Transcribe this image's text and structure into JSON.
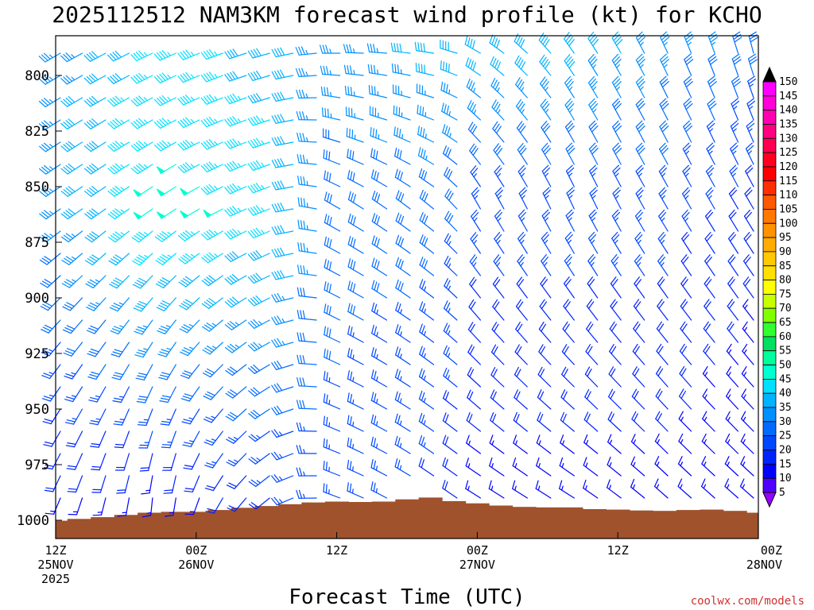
{
  "chart_data": {
    "type": "wind_profile",
    "title": "2025112512 NAM3KM forecast wind profile (kt) for KCHO",
    "xlabel": "Forecast Time (UTC)",
    "ylabel": "",
    "credit": "coolwx.com/models",
    "x_ticks": [
      {
        "hour": 0,
        "lines": [
          "12Z",
          "25NOV",
          "2025"
        ]
      },
      {
        "hour": 12,
        "lines": [
          "00Z",
          "26NOV"
        ]
      },
      {
        "hour": 24,
        "lines": [
          "12Z"
        ]
      },
      {
        "hour": 36,
        "lines": [
          "00Z",
          "27NOV"
        ]
      },
      {
        "hour": 48,
        "lines": [
          "12Z"
        ]
      },
      {
        "hour": 60,
        "lines": [
          "00Z",
          "28NOV"
        ]
      }
    ],
    "xlim_hours": [
      0,
      60
    ],
    "y_ticks": [
      "800",
      "825",
      "850",
      "875",
      "900",
      "925",
      "950",
      "975",
      "1000"
    ],
    "y_tick_values": [
      800,
      825,
      850,
      875,
      900,
      925,
      950,
      975,
      1000
    ],
    "ylim_hpa": [
      783,
      1008
    ],
    "pressure_levels_hpa": [
      790,
      800,
      810,
      820,
      830,
      840,
      850,
      860,
      870,
      880,
      890,
      900,
      910,
      920,
      930,
      940,
      950,
      960,
      970,
      980,
      990,
      1000
    ],
    "forecast_hours": [
      0,
      2,
      4,
      6,
      8,
      10,
      12,
      14,
      16,
      18,
      20,
      22,
      24,
      26,
      28,
      30,
      32,
      34,
      36,
      38,
      40,
      42,
      44,
      46,
      48,
      50,
      52,
      54,
      56,
      58,
      60
    ],
    "wind_keyframes": [
      {
        "hour": 0,
        "upper": {
          "dir": 240,
          "spd": 35
        },
        "mid": {
          "dir": 235,
          "spd": 35
        },
        "low": {
          "dir": 200,
          "spd": 15
        }
      },
      {
        "hour": 9,
        "upper": {
          "dir": 245,
          "spd": 45
        },
        "mid": {
          "dir": 235,
          "spd": 50
        },
        "low": {
          "dir": 180,
          "spd": 12
        }
      },
      {
        "hour": 19,
        "upper": {
          "dir": 255,
          "spd": 40
        },
        "mid": {
          "dir": 250,
          "spd": 45
        },
        "low": {
          "dir": 235,
          "spd": 20
        }
      },
      {
        "hour": 24,
        "upper": {
          "dir": 270,
          "spd": 35
        },
        "mid": {
          "dir": 300,
          "spd": 30
        },
        "low": {
          "dir": 290,
          "spd": 25
        }
      },
      {
        "hour": 33,
        "upper": {
          "dir": 280,
          "spd": 40
        },
        "mid": {
          "dir": 310,
          "spd": 30
        },
        "low": {
          "dir": 305,
          "spd": 20
        }
      },
      {
        "hour": 36,
        "upper": {
          "dir": 300,
          "spd": 40
        },
        "mid": {
          "dir": 330,
          "spd": 25
        },
        "low": {
          "dir": 300,
          "spd": 15
        }
      },
      {
        "hour": 44,
        "upper": {
          "dir": 325,
          "spd": 40
        },
        "mid": {
          "dir": 335,
          "spd": 25
        },
        "low": {
          "dir": 300,
          "spd": 15
        }
      },
      {
        "hour": 52,
        "upper": {
          "dir": 335,
          "spd": 35
        },
        "mid": {
          "dir": 330,
          "spd": 25
        },
        "low": {
          "dir": 310,
          "spd": 15
        }
      },
      {
        "hour": 60,
        "upper": {
          "dir": 345,
          "spd": 30
        },
        "mid": {
          "dir": 330,
          "spd": 20
        },
        "low": {
          "dir": 310,
          "spd": 12
        }
      }
    ],
    "terrain": {
      "color": "#a0522d",
      "hours": [
        0,
        2,
        4,
        6,
        8,
        10,
        12,
        14,
        16,
        18,
        20,
        22,
        24,
        26,
        28,
        30,
        32,
        34,
        36,
        38,
        40,
        42,
        44,
        46,
        48,
        50,
        52,
        54,
        56,
        58,
        60
      ],
      "surface_pressure_hpa": [
        1000.2,
        999.4,
        998.6,
        997.6,
        996.6,
        996.2,
        996.2,
        995.4,
        994.4,
        993.6,
        992.8,
        992.0,
        991.6,
        991.8,
        991.6,
        990.6,
        989.8,
        991.4,
        992.4,
        993.4,
        994.0,
        994.2,
        994.2,
        995.0,
        995.2,
        995.6,
        995.8,
        995.4,
        995.2,
        995.8,
        996.6
      ]
    },
    "colorbar": {
      "labels": [
        "150",
        "145",
        "140",
        "135",
        "130",
        "125",
        "120",
        "115",
        "110",
        "105",
        "100",
        "95",
        "90",
        "85",
        "80",
        "75",
        "70",
        "65",
        "60",
        "55",
        "50",
        "45",
        "40",
        "35",
        "30",
        "25",
        "20",
        "15",
        "10",
        "5"
      ],
      "values": [
        150,
        145,
        140,
        135,
        130,
        125,
        120,
        115,
        110,
        105,
        100,
        95,
        90,
        85,
        80,
        75,
        70,
        65,
        60,
        55,
        50,
        45,
        40,
        35,
        30,
        25,
        20,
        15,
        10,
        5
      ],
      "colors": [
        "#ff00ff",
        "#ff00d8",
        "#ff00b0",
        "#ff0080",
        "#ff0050",
        "#ff0020",
        "#ff0000",
        "#ff3000",
        "#ff5a00",
        "#ff7800",
        "#ff9400",
        "#ffac00",
        "#ffc800",
        "#ffe000",
        "#ffff00",
        "#c8ff00",
        "#80ff00",
        "#30ff30",
        "#00e060",
        "#00ff9c",
        "#00ffd0",
        "#00e0ff",
        "#00b4ff",
        "#0090ff",
        "#006cff",
        "#0048ff",
        "#0024ff",
        "#0000ff",
        "#5000ff",
        "#8c00ff"
      ],
      "top_cap_color": "#000000",
      "bottom_cap_color": "#9900ff"
    }
  }
}
